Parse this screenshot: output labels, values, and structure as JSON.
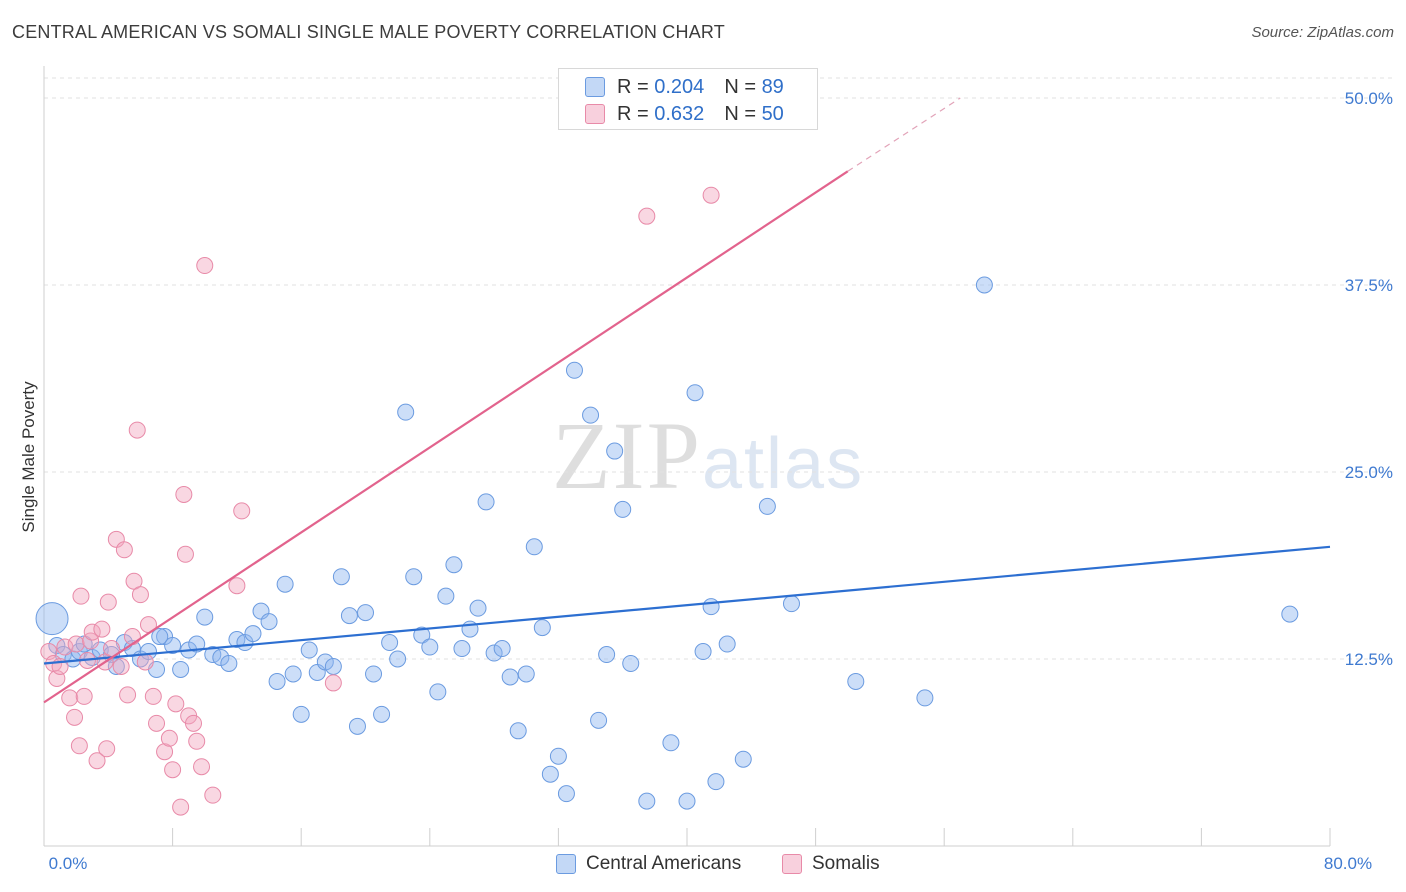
{
  "title": "CENTRAL AMERICAN VS SOMALI SINGLE MALE POVERTY CORRELATION CHART",
  "source": "Source: ZipAtlas.com",
  "watermark": {
    "zip": "ZIP",
    "atlas": "atlas"
  },
  "legend": {
    "rows": [
      {
        "r_label": "R =",
        "r_value": "0.204",
        "n_label": "N =",
        "n_value": "89",
        "color": "#8fb6ef"
      },
      {
        "r_label": "R =",
        "r_value": "0.632",
        "n_label": "N =",
        "n_value": "50",
        "color": "#f2a7bf"
      }
    ],
    "bottom": [
      {
        "label": "Central Americans",
        "color": "#8fb6ef"
      },
      {
        "label": "Somalis",
        "color": "#f2a7bf"
      }
    ]
  },
  "chart_data": {
    "type": "scatter",
    "title": "CENTRAL AMERICAN VS SOMALI SINGLE MALE POVERTY CORRELATION CHART",
    "xlabel": "",
    "ylabel": "Single Male Poverty",
    "xlim": [
      0,
      80
    ],
    "ylim": [
      0,
      50
    ],
    "x_tick_labels": [
      {
        "value": 0,
        "label": "0.0%"
      },
      {
        "value": 80,
        "label": "80.0%"
      }
    ],
    "y_tick_labels": [
      {
        "value": 12.5,
        "label": "12.5%"
      },
      {
        "value": 25,
        "label": "25.0%"
      },
      {
        "value": 37.5,
        "label": "37.5%"
      },
      {
        "value": 50,
        "label": "50.0%"
      }
    ],
    "series": [
      {
        "name": "Central Americans",
        "color": "#8fb6ef",
        "stroke": "#6b9be0",
        "r": 0.204,
        "n": 89,
        "trend": {
          "x": [
            0,
            80
          ],
          "y": [
            12.2,
            20.0
          ]
        },
        "points": [
          [
            0.5,
            15.2
          ],
          [
            0.8,
            13.4
          ],
          [
            1.2,
            12.8
          ],
          [
            1.8,
            12.5
          ],
          [
            2.2,
            13.0
          ],
          [
            2.5,
            13.5
          ],
          [
            3.0,
            12.6
          ],
          [
            3.5,
            13.1
          ],
          [
            4.2,
            12.8
          ],
          [
            4.5,
            12.0
          ],
          [
            5.0,
            13.6
          ],
          [
            5.5,
            13.2
          ],
          [
            6.0,
            12.5
          ],
          [
            6.5,
            13.0
          ],
          [
            7.0,
            11.8
          ],
          [
            7.5,
            14.0
          ],
          [
            8.0,
            13.4
          ],
          [
            8.5,
            11.8
          ],
          [
            9.0,
            13.1
          ],
          [
            9.5,
            13.5
          ],
          [
            10.0,
            15.3
          ],
          [
            10.5,
            12.8
          ],
          [
            11.0,
            12.6
          ],
          [
            11.5,
            12.2
          ],
          [
            12.0,
            13.8
          ],
          [
            12.5,
            13.6
          ],
          [
            13.0,
            14.2
          ],
          [
            13.5,
            15.7
          ],
          [
            14.0,
            15.0
          ],
          [
            14.5,
            11.0
          ],
          [
            15.0,
            17.5
          ],
          [
            15.5,
            11.5
          ],
          [
            16.0,
            8.8
          ],
          [
            16.5,
            13.1
          ],
          [
            17.0,
            11.6
          ],
          [
            17.5,
            12.3
          ],
          [
            18.0,
            12.0
          ],
          [
            18.5,
            18.0
          ],
          [
            19.0,
            15.4
          ],
          [
            19.5,
            8.0
          ],
          [
            20.0,
            15.6
          ],
          [
            20.5,
            11.5
          ],
          [
            21.0,
            8.8
          ],
          [
            21.5,
            13.6
          ],
          [
            22.0,
            12.5
          ],
          [
            22.5,
            29.0
          ],
          [
            23.0,
            18.0
          ],
          [
            23.5,
            14.1
          ],
          [
            24.0,
            13.3
          ],
          [
            24.5,
            10.3
          ],
          [
            25.0,
            16.7
          ],
          [
            25.5,
            18.8
          ],
          [
            26.0,
            13.2
          ],
          [
            26.5,
            14.5
          ],
          [
            27.0,
            15.9
          ],
          [
            27.5,
            23.0
          ],
          [
            28.0,
            12.9
          ],
          [
            28.5,
            13.2
          ],
          [
            29.0,
            11.3
          ],
          [
            29.5,
            7.7
          ],
          [
            30.0,
            11.5
          ],
          [
            30.5,
            20.0
          ],
          [
            31.0,
            14.6
          ],
          [
            31.5,
            4.8
          ],
          [
            32.0,
            6.0
          ],
          [
            32.5,
            3.5
          ],
          [
            33.0,
            31.8
          ],
          [
            34.0,
            28.8
          ],
          [
            34.5,
            8.4
          ],
          [
            35.0,
            12.8
          ],
          [
            35.5,
            26.4
          ],
          [
            36.0,
            22.5
          ],
          [
            36.5,
            12.2
          ],
          [
            37.5,
            3.0
          ],
          [
            39.0,
            6.9
          ],
          [
            40.0,
            3.0
          ],
          [
            40.5,
            30.3
          ],
          [
            41.0,
            13.0
          ],
          [
            41.5,
            16.0
          ],
          [
            41.8,
            4.3
          ],
          [
            42.5,
            13.5
          ],
          [
            43.5,
            5.8
          ],
          [
            45.0,
            22.7
          ],
          [
            46.5,
            16.2
          ],
          [
            50.5,
            11.0
          ],
          [
            54.8,
            9.9
          ],
          [
            58.5,
            37.5
          ],
          [
            77.5,
            15.5
          ],
          [
            7.2,
            14.0
          ]
        ],
        "sizes_note": "first point is an enlarged marker"
      },
      {
        "name": "Somalis",
        "color": "#f2a7bf",
        "stroke": "#e88aa8",
        "r": 0.632,
        "n": 50,
        "trend": {
          "x": [
            0,
            50
          ],
          "y": [
            9.6,
            45.1
          ]
        },
        "trend_dashed": {
          "x": [
            50,
            57
          ],
          "y": [
            45.1,
            50.0
          ]
        },
        "points": [
          [
            0.3,
            13.0
          ],
          [
            0.6,
            12.2
          ],
          [
            0.8,
            11.2
          ],
          [
            1.0,
            12.0
          ],
          [
            1.3,
            13.3
          ],
          [
            1.6,
            9.9
          ],
          [
            1.9,
            8.6
          ],
          [
            2.0,
            13.5
          ],
          [
            2.2,
            6.7
          ],
          [
            2.3,
            16.7
          ],
          [
            2.5,
            10.0
          ],
          [
            2.7,
            12.4
          ],
          [
            2.9,
            13.7
          ],
          [
            3.0,
            14.3
          ],
          [
            3.3,
            5.7
          ],
          [
            3.6,
            14.5
          ],
          [
            3.8,
            12.3
          ],
          [
            3.9,
            6.5
          ],
          [
            4.0,
            16.3
          ],
          [
            4.2,
            13.2
          ],
          [
            4.5,
            20.5
          ],
          [
            4.8,
            12.0
          ],
          [
            5.0,
            19.8
          ],
          [
            5.2,
            10.1
          ],
          [
            5.5,
            14.0
          ],
          [
            5.6,
            17.7
          ],
          [
            5.8,
            27.8
          ],
          [
            6.0,
            16.8
          ],
          [
            6.3,
            12.3
          ],
          [
            6.5,
            14.8
          ],
          [
            6.8,
            10.0
          ],
          [
            7.0,
            8.2
          ],
          [
            7.5,
            6.3
          ],
          [
            7.8,
            7.2
          ],
          [
            8.0,
            5.1
          ],
          [
            8.2,
            9.5
          ],
          [
            8.5,
            2.6
          ],
          [
            8.7,
            23.5
          ],
          [
            8.8,
            19.5
          ],
          [
            9.0,
            8.7
          ],
          [
            9.3,
            8.2
          ],
          [
            9.5,
            7.0
          ],
          [
            9.8,
            5.3
          ],
          [
            10.0,
            38.8
          ],
          [
            10.5,
            3.4
          ],
          [
            12.0,
            17.4
          ],
          [
            12.3,
            22.4
          ],
          [
            18.0,
            10.9
          ],
          [
            37.5,
            42.1
          ],
          [
            41.5,
            43.5
          ]
        ]
      }
    ]
  }
}
